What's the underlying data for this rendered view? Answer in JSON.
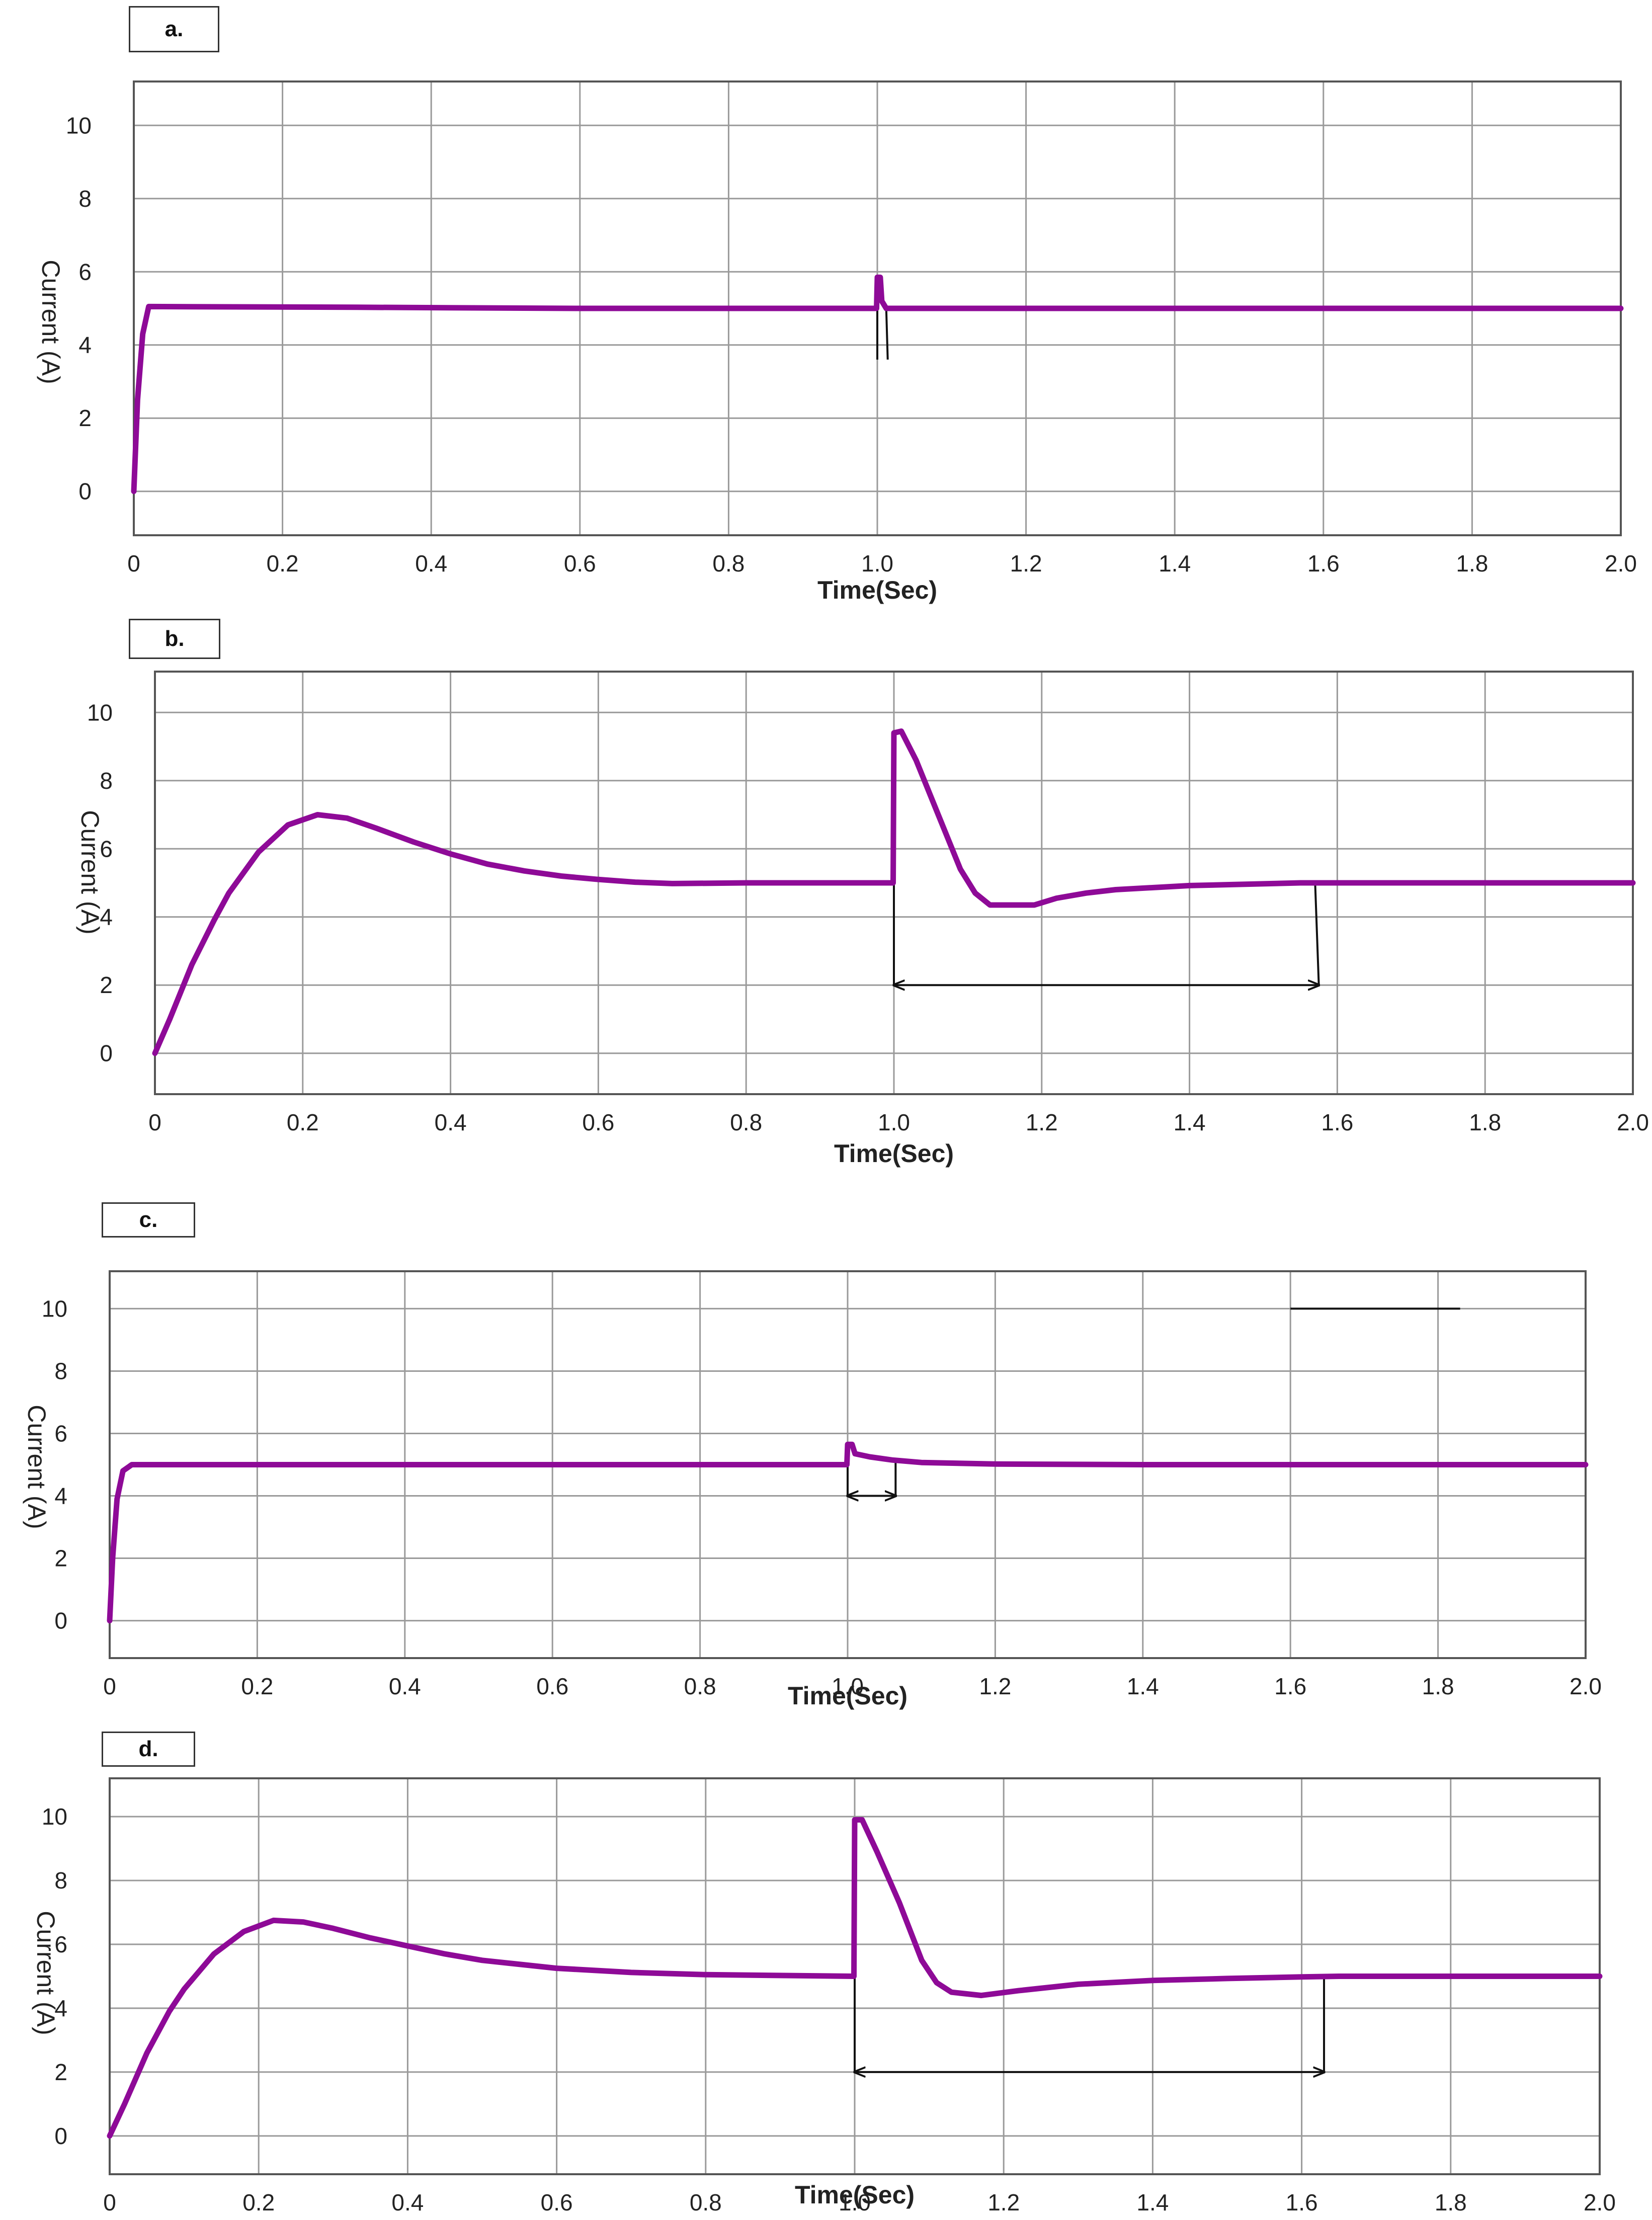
{
  "chart_data": [
    {
      "type": "line",
      "panel_label": "a.",
      "xlabel": "Time(Sec)",
      "ylabel": "Current (A)",
      "xlim": [
        0,
        2.0
      ],
      "ylim": [
        -1.2,
        11.2
      ],
      "x_ticks": [
        "0",
        "0.2",
        "0.4",
        "0.6",
        "0.8",
        "1.0",
        "1.2",
        "1.4",
        "1.6",
        "1.8",
        "2.0"
      ],
      "y_ticks": [
        "0",
        "2",
        "4",
        "6",
        "8",
        "10"
      ],
      "grid": true,
      "series_color": "#8e0a97",
      "series": [
        {
          "points": [
            [
              0,
              0
            ],
            [
              0.005,
              2.5
            ],
            [
              0.012,
              4.3
            ],
            [
              0.02,
              5.05
            ],
            [
              0.3,
              5.03
            ],
            [
              0.6,
              5.0
            ],
            [
              0.999,
              5.0
            ],
            [
              1.0,
              5.85
            ],
            [
              1.004,
              5.85
            ],
            [
              1.006,
              5.2
            ],
            [
              1.012,
              5.0
            ],
            [
              1.4,
              5.0
            ],
            [
              2.0,
              5.0
            ]
          ]
        }
      ],
      "annotations": [
        {
          "type": "line",
          "points": [
            [
              1.0,
              5.0
            ],
            [
              1.0,
              3.6
            ]
          ]
        },
        {
          "type": "line",
          "points": [
            [
              1.012,
              5.0
            ],
            [
              1.014,
              3.6
            ]
          ]
        }
      ]
    },
    {
      "type": "line",
      "panel_label": "b.",
      "xlabel": "Time(Sec)",
      "ylabel": "Current (A)",
      "xlim": [
        0,
        2.0
      ],
      "ylim": [
        -1.2,
        11.2
      ],
      "x_ticks": [
        "0",
        "0.2",
        "0.4",
        "0.6",
        "0.8",
        "1.0",
        "1.2",
        "1.4",
        "1.6",
        "1.8",
        "2.0"
      ],
      "y_ticks": [
        "0",
        "2",
        "4",
        "6",
        "8",
        "10"
      ],
      "grid": true,
      "series_color": "#8e0a97",
      "series": [
        {
          "points": [
            [
              0,
              0
            ],
            [
              0.02,
              1.0
            ],
            [
              0.05,
              2.6
            ],
            [
              0.08,
              3.9
            ],
            [
              0.1,
              4.7
            ],
            [
              0.14,
              5.9
            ],
            [
              0.18,
              6.7
            ],
            [
              0.22,
              7.0
            ],
            [
              0.26,
              6.9
            ],
            [
              0.3,
              6.6
            ],
            [
              0.35,
              6.2
            ],
            [
              0.4,
              5.85
            ],
            [
              0.45,
              5.55
            ],
            [
              0.5,
              5.35
            ],
            [
              0.55,
              5.2
            ],
            [
              0.6,
              5.1
            ],
            [
              0.65,
              5.02
            ],
            [
              0.7,
              4.98
            ],
            [
              0.8,
              5.0
            ],
            [
              0.999,
              5.0
            ],
            [
              1.0,
              9.4
            ],
            [
              1.01,
              9.45
            ],
            [
              1.03,
              8.6
            ],
            [
              1.06,
              7.0
            ],
            [
              1.09,
              5.4
            ],
            [
              1.11,
              4.7
            ],
            [
              1.13,
              4.35
            ],
            [
              1.19,
              4.35
            ],
            [
              1.22,
              4.55
            ],
            [
              1.26,
              4.7
            ],
            [
              1.3,
              4.8
            ],
            [
              1.4,
              4.92
            ],
            [
              1.55,
              5.0
            ],
            [
              1.6,
              5.0
            ],
            [
              2.0,
              5.0
            ]
          ]
        }
      ],
      "annotations": [
        {
          "type": "line",
          "points": [
            [
              1.0,
              5.0
            ],
            [
              1.0,
              2.0
            ]
          ]
        },
        {
          "type": "line",
          "points": [
            [
              1.57,
              5.0
            ],
            [
              1.575,
              2.0
            ]
          ]
        },
        {
          "type": "double-arrow",
          "points": [
            [
              1.0,
              2.0
            ],
            [
              1.575,
              2.0
            ]
          ]
        }
      ]
    },
    {
      "type": "line",
      "panel_label": "c.",
      "xlabel": "Time(Sec)",
      "ylabel": "Current (A)",
      "xlim": [
        0,
        2.0
      ],
      "ylim": [
        -1.2,
        11.2
      ],
      "x_ticks": [
        "0",
        "0.2",
        "0.4",
        "0.6",
        "0.8",
        "1.0",
        "1.2",
        "1.4",
        "1.6",
        "1.8",
        "2.0"
      ],
      "y_ticks": [
        "0",
        "2",
        "4",
        "6",
        "8",
        "10"
      ],
      "grid": true,
      "series_color": "#8e0a97",
      "series": [
        {
          "points": [
            [
              0,
              0
            ],
            [
              0.004,
              2.0
            ],
            [
              0.01,
              3.9
            ],
            [
              0.018,
              4.8
            ],
            [
              0.03,
              5.0
            ],
            [
              0.4,
              5.0
            ],
            [
              0.999,
              5.0
            ],
            [
              1.0,
              5.65
            ],
            [
              1.006,
              5.65
            ],
            [
              1.01,
              5.35
            ],
            [
              1.03,
              5.25
            ],
            [
              1.06,
              5.15
            ],
            [
              1.1,
              5.07
            ],
            [
              1.2,
              5.02
            ],
            [
              1.4,
              5.0
            ],
            [
              2.0,
              5.0
            ]
          ]
        }
      ],
      "annotations": [
        {
          "type": "line",
          "points": [
            [
              1.0,
              5.0
            ],
            [
              1.0,
              4.0
            ]
          ]
        },
        {
          "type": "line",
          "points": [
            [
              1.065,
              5.1
            ],
            [
              1.065,
              4.0
            ]
          ]
        },
        {
          "type": "double-arrow",
          "points": [
            [
              1.0,
              4.0
            ],
            [
              1.065,
              4.0
            ]
          ]
        },
        {
          "type": "line",
          "points": [
            [
              1.6,
              10.0
            ],
            [
              1.83,
              10.0
            ]
          ]
        }
      ]
    },
    {
      "type": "line",
      "panel_label": "d.",
      "xlabel": "Time(Sec)",
      "ylabel": "Current (A)",
      "xlim": [
        0,
        2.0
      ],
      "ylim": [
        -1.2,
        11.2
      ],
      "x_ticks": [
        "0",
        "0.2",
        "0.4",
        "0.6",
        "0.8",
        "1.0",
        "1.2",
        "1.4",
        "1.6",
        "1.8",
        "2.0"
      ],
      "y_ticks": [
        "0",
        "2",
        "4",
        "6",
        "8",
        "10"
      ],
      "grid": true,
      "series_color": "#8e0a97",
      "series": [
        {
          "points": [
            [
              0,
              0
            ],
            [
              0.02,
              1.0
            ],
            [
              0.05,
              2.6
            ],
            [
              0.08,
              3.9
            ],
            [
              0.1,
              4.6
            ],
            [
              0.14,
              5.7
            ],
            [
              0.18,
              6.4
            ],
            [
              0.22,
              6.75
            ],
            [
              0.26,
              6.7
            ],
            [
              0.3,
              6.5
            ],
            [
              0.35,
              6.2
            ],
            [
              0.4,
              5.95
            ],
            [
              0.45,
              5.7
            ],
            [
              0.5,
              5.5
            ],
            [
              0.6,
              5.25
            ],
            [
              0.7,
              5.12
            ],
            [
              0.8,
              5.05
            ],
            [
              0.999,
              5.0
            ],
            [
              1.0,
              9.9
            ],
            [
              1.01,
              9.9
            ],
            [
              1.03,
              8.9
            ],
            [
              1.06,
              7.3
            ],
            [
              1.09,
              5.5
            ],
            [
              1.11,
              4.8
            ],
            [
              1.13,
              4.5
            ],
            [
              1.17,
              4.4
            ],
            [
              1.22,
              4.55
            ],
            [
              1.3,
              4.75
            ],
            [
              1.4,
              4.87
            ],
            [
              1.5,
              4.93
            ],
            [
              1.6,
              4.98
            ],
            [
              1.65,
              5.0
            ],
            [
              2.0,
              5.0
            ]
          ]
        }
      ],
      "annotations": [
        {
          "type": "line",
          "points": [
            [
              1.0,
              5.0
            ],
            [
              1.0,
              2.0
            ]
          ]
        },
        {
          "type": "line",
          "points": [
            [
              1.63,
              5.0
            ],
            [
              1.63,
              2.0
            ]
          ]
        },
        {
          "type": "double-arrow",
          "points": [
            [
              1.0,
              2.0
            ],
            [
              1.63,
              2.0
            ]
          ]
        }
      ]
    }
  ]
}
